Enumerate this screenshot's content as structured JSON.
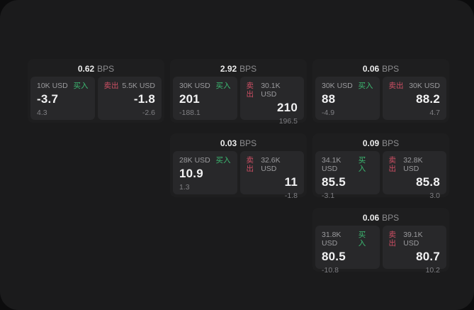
{
  "page": {
    "outer_bg": "#0c0c0d",
    "panel_bg": "#1b1b1c",
    "card_bg": "#1e1e1f",
    "subpanel_bg": "#28282a",
    "buy_color": "#3cba72",
    "sell_color": "#ce4f64"
  },
  "labels": {
    "bps_unit": "BPS",
    "buy": "买入",
    "sell": "卖出"
  },
  "cards": [
    {
      "row": 1,
      "col": 1,
      "bps": "0.62",
      "buy": {
        "amount": "10K USD",
        "value": "-3.7",
        "sub": "4.3"
      },
      "sell": {
        "amount": "5.5K USD",
        "value": "-1.8",
        "sub": "-2.6"
      }
    },
    {
      "row": 1,
      "col": 2,
      "bps": "2.92",
      "buy": {
        "amount": "30K USD",
        "value": "201",
        "sub": "-188.1"
      },
      "sell": {
        "amount": "30.1K USD",
        "value": "210",
        "sub": "196.5"
      }
    },
    {
      "row": 1,
      "col": 3,
      "bps": "0.06",
      "buy": {
        "amount": "30K USD",
        "value": "88",
        "sub": "-4.9"
      },
      "sell": {
        "amount": "30K USD",
        "value": "88.2",
        "sub": "4.7"
      }
    },
    {
      "row": 2,
      "col": 2,
      "bps": "0.03",
      "buy": {
        "amount": "28K USD",
        "value": "10.9",
        "sub": "1.3"
      },
      "sell": {
        "amount": "32.6K USD",
        "value": "11",
        "sub": "-1.8"
      }
    },
    {
      "row": 2,
      "col": 3,
      "bps": "0.09",
      "buy": {
        "amount": "34.1K USD",
        "value": "85.5",
        "sub": "-3.1"
      },
      "sell": {
        "amount": "32.8K USD",
        "value": "85.8",
        "sub": "3.0"
      }
    },
    {
      "row": 3,
      "col": 3,
      "bps": "0.06",
      "buy": {
        "amount": "31.8K USD",
        "value": "80.5",
        "sub": "-10.8"
      },
      "sell": {
        "amount": "39.1K USD",
        "value": "80.7",
        "sub": "10.2"
      }
    }
  ]
}
